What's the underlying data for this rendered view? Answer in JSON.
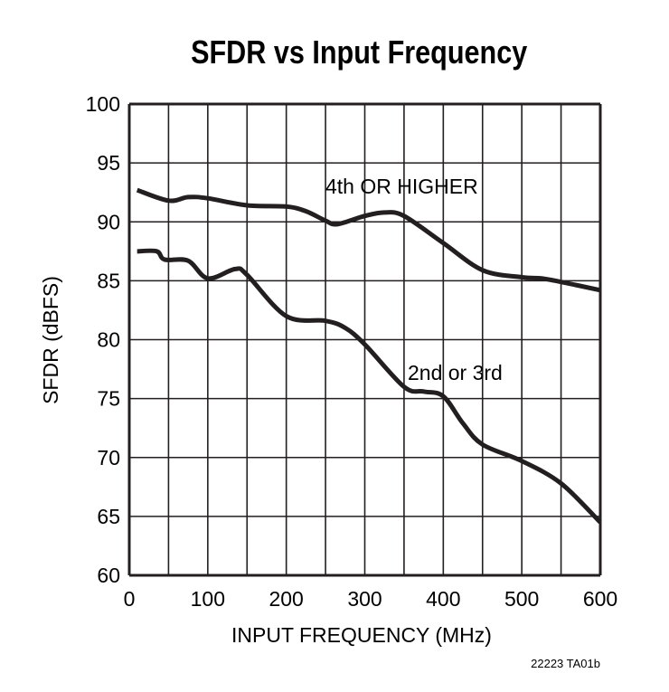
{
  "chart_data": {
    "type": "line",
    "title": "SFDR vs Input Frequency",
    "xlabel": "INPUT FREQUENCY (MHz)",
    "ylabel": "SFDR (dBFS)",
    "xlim": [
      0,
      600
    ],
    "ylim": [
      60,
      100
    ],
    "x_ticks": [
      "0",
      "100",
      "200",
      "300",
      "400",
      "500",
      "600"
    ],
    "y_ticks": [
      "60",
      "65",
      "70",
      "75",
      "80",
      "85",
      "90",
      "95",
      "100"
    ],
    "grid": true,
    "x_grid_step": 50,
    "y_grid_step": 5,
    "line_color": "#231f20",
    "footnote": "22223 TA01b",
    "series": [
      {
        "name": "4th OR HIGHER",
        "x": [
          10,
          50,
          75,
          100,
          150,
          200,
          225,
          250,
          265,
          300,
          325,
          350,
          400,
          450,
          500,
          525,
          550,
          600
        ],
        "y": [
          92.7,
          91.8,
          92.1,
          92.0,
          91.4,
          91.3,
          90.9,
          90.1,
          89.8,
          90.5,
          90.8,
          90.5,
          88.2,
          85.9,
          85.3,
          85.2,
          84.9,
          84.2
        ]
      },
      {
        "name": "2nd or 3rd",
        "x": [
          10,
          35,
          45,
          75,
          100,
          135,
          150,
          200,
          250,
          275,
          300,
          350,
          375,
          400,
          425,
          450,
          500,
          550,
          600
        ],
        "y": [
          87.5,
          87.5,
          86.8,
          86.7,
          85.2,
          86.0,
          85.5,
          82.0,
          81.6,
          81.0,
          79.6,
          76.0,
          75.6,
          75.2,
          72.9,
          71.1,
          69.7,
          67.8,
          64.5
        ]
      }
    ]
  }
}
